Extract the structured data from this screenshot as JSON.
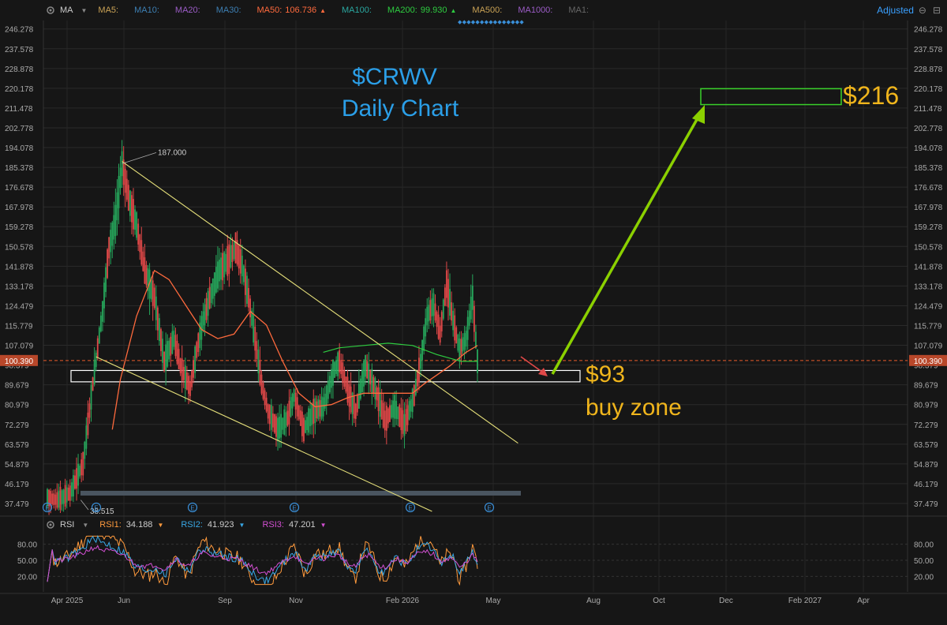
{
  "header": {
    "indicator": "MA",
    "ma_items": [
      {
        "label": "MA5:",
        "value": "",
        "color": "#c9a255"
      },
      {
        "label": "MA10:",
        "value": "",
        "color": "#3d7fb3"
      },
      {
        "label": "MA20:",
        "value": "",
        "color": "#9b5cc6"
      },
      {
        "label": "MA30:",
        "value": "",
        "color": "#3d7fb3"
      },
      {
        "label": "MA50:",
        "value": "106.736",
        "color": "#ff6a3d",
        "trend": "▲"
      },
      {
        "label": "MA100:",
        "value": "",
        "color": "#2aa7a0"
      },
      {
        "label": "MA200:",
        "value": "99.930",
        "color": "#2ecc40",
        "trend": "▲"
      },
      {
        "label": "MA500:",
        "value": "",
        "color": "#c9a255"
      },
      {
        "label": "MA1000:",
        "value": "",
        "color": "#9b5cc6"
      },
      {
        "label": "MA1:",
        "value": "",
        "color": "#666666"
      }
    ],
    "adjusted_label": "Adjusted"
  },
  "rsi_header": {
    "indicator": "RSI",
    "items": [
      {
        "label": "RSI1:",
        "value": "34.188",
        "color": "#ff9a3d"
      },
      {
        "label": "RSI2:",
        "value": "41.923",
        "color": "#39a8e6"
      },
      {
        "label": "RSI3:",
        "value": "47.201",
        "color": "#d24fd2"
      }
    ]
  },
  "chart_data": {
    "type": "line",
    "title": "$CRWV",
    "subtitle": "Daily Chart",
    "y_ticks": [
      "246.278",
      "237.578",
      "228.878",
      "220.178",
      "211.478",
      "202.778",
      "194.078",
      "185.378",
      "176.678",
      "167.978",
      "159.278",
      "150.578",
      "141.878",
      "133.178",
      "124.479",
      "115.779",
      "107.079",
      "98.379",
      "89.679",
      "80.979",
      "72.279",
      "63.579",
      "54.879",
      "46.179",
      "37.479"
    ],
    "ylim": [
      34,
      250
    ],
    "x_ticks": [
      "Apr 2025",
      "Jun",
      "Sep",
      "Nov",
      "Feb 2026",
      "May",
      "Aug",
      "Oct",
      "Dec",
      "Feb 2027",
      "Apr"
    ],
    "current_price": "100.390",
    "high_label": "187.000",
    "low_label": "38.515",
    "price_series": [
      {
        "t": 0,
        "v": 40
      },
      {
        "t": 6,
        "v": 39
      },
      {
        "t": 14,
        "v": 42
      },
      {
        "t": 22,
        "v": 55
      },
      {
        "t": 28,
        "v": 90
      },
      {
        "t": 34,
        "v": 122
      },
      {
        "t": 38,
        "v": 150
      },
      {
        "t": 42,
        "v": 162
      },
      {
        "t": 46,
        "v": 187
      },
      {
        "t": 50,
        "v": 172
      },
      {
        "t": 55,
        "v": 160
      },
      {
        "t": 60,
        "v": 140
      },
      {
        "t": 66,
        "v": 128
      },
      {
        "t": 72,
        "v": 100
      },
      {
        "t": 78,
        "v": 110
      },
      {
        "t": 82,
        "v": 98
      },
      {
        "t": 88,
        "v": 88
      },
      {
        "t": 92,
        "v": 105
      },
      {
        "t": 96,
        "v": 118
      },
      {
        "t": 100,
        "v": 128
      },
      {
        "t": 106,
        "v": 140
      },
      {
        "t": 112,
        "v": 145
      },
      {
        "t": 116,
        "v": 150
      },
      {
        "t": 120,
        "v": 142
      },
      {
        "t": 124,
        "v": 128
      },
      {
        "t": 128,
        "v": 110
      },
      {
        "t": 132,
        "v": 90
      },
      {
        "t": 136,
        "v": 78
      },
      {
        "t": 142,
        "v": 70
      },
      {
        "t": 148,
        "v": 75
      },
      {
        "t": 152,
        "v": 85
      },
      {
        "t": 158,
        "v": 70
      },
      {
        "t": 164,
        "v": 78
      },
      {
        "t": 170,
        "v": 80
      },
      {
        "t": 176,
        "v": 95
      },
      {
        "t": 180,
        "v": 100
      },
      {
        "t": 186,
        "v": 85
      },
      {
        "t": 190,
        "v": 78
      },
      {
        "t": 196,
        "v": 98
      },
      {
        "t": 202,
        "v": 88
      },
      {
        "t": 208,
        "v": 74
      },
      {
        "t": 214,
        "v": 80
      },
      {
        "t": 220,
        "v": 72
      },
      {
        "t": 226,
        "v": 85
      },
      {
        "t": 230,
        "v": 100
      },
      {
        "t": 234,
        "v": 120
      },
      {
        "t": 238,
        "v": 125
      },
      {
        "t": 242,
        "v": 112
      },
      {
        "t": 246,
        "v": 134
      },
      {
        "t": 250,
        "v": 118
      },
      {
        "t": 254,
        "v": 105
      },
      {
        "t": 258,
        "v": 110
      },
      {
        "t": 262,
        "v": 128
      },
      {
        "t": 265,
        "v": 100
      }
    ],
    "ma50_series": [
      {
        "t": 40,
        "v": 70
      },
      {
        "t": 45,
        "v": 92
      },
      {
        "t": 55,
        "v": 120
      },
      {
        "t": 66,
        "v": 140
      },
      {
        "t": 75,
        "v": 136
      },
      {
        "t": 85,
        "v": 125
      },
      {
        "t": 95,
        "v": 114
      },
      {
        "t": 105,
        "v": 110
      },
      {
        "t": 115,
        "v": 112
      },
      {
        "t": 125,
        "v": 122
      },
      {
        "t": 135,
        "v": 116
      },
      {
        "t": 145,
        "v": 100
      },
      {
        "t": 155,
        "v": 86
      },
      {
        "t": 165,
        "v": 80
      },
      {
        "t": 175,
        "v": 81
      },
      {
        "t": 185,
        "v": 84
      },
      {
        "t": 195,
        "v": 86
      },
      {
        "t": 205,
        "v": 86
      },
      {
        "t": 215,
        "v": 86
      },
      {
        "t": 225,
        "v": 86
      },
      {
        "t": 232,
        "v": 90
      },
      {
        "t": 240,
        "v": 94
      },
      {
        "t": 248,
        "v": 98
      },
      {
        "t": 258,
        "v": 104
      },
      {
        "t": 265,
        "v": 107
      }
    ],
    "ma200_series": [
      {
        "t": 170,
        "v": 104
      },
      {
        "t": 180,
        "v": 106
      },
      {
        "t": 195,
        "v": 107
      },
      {
        "t": 210,
        "v": 108
      },
      {
        "t": 225,
        "v": 107
      },
      {
        "t": 240,
        "v": 103
      },
      {
        "t": 255,
        "v": 100
      },
      {
        "t": 265,
        "v": 100
      }
    ],
    "trendlines": [
      {
        "from": {
          "t": 46,
          "v": 188
        },
        "to": {
          "t": 290,
          "v": 64
        }
      },
      {
        "from": {
          "t": 30,
          "v": 102
        },
        "to": {
          "t": 237,
          "v": 34
        }
      }
    ],
    "buy_zone": {
      "low": 91,
      "high": 96,
      "label": "$93",
      "label2": "buy zone"
    },
    "target_zone": {
      "low": 213,
      "high": 220,
      "label": "$216"
    },
    "support_bar_level": 42,
    "earnings_marker": "E",
    "rsi": {
      "ticks": [
        "80.00",
        "50.00",
        "20.00"
      ],
      "ylim": [
        0,
        100
      ],
      "rsi1_last": 34.188,
      "rsi2_last": 41.923,
      "rsi3_last": 47.201
    }
  }
}
